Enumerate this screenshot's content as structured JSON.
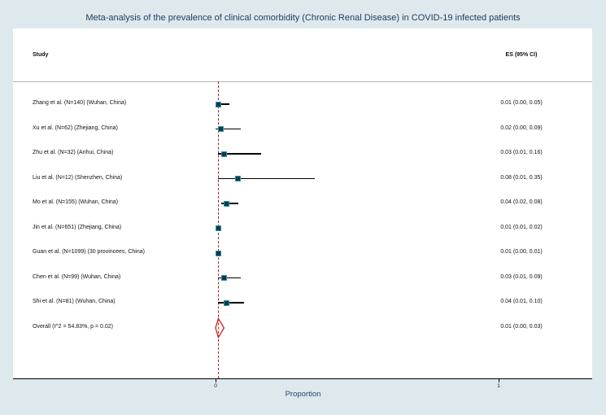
{
  "title": "Meta-analysis of the prevalence of clinical comorbidity (Chronic Renal Disease) in COVID-19 infected patients",
  "columns": {
    "study": "Study",
    "es": "ES (95% CI)"
  },
  "xlabel": "Proportion",
  "x_tick_labels": [
    "0",
    "1"
  ],
  "colors": {
    "background": "#dee9ed",
    "plot_background": "#ffffff",
    "reference_line": "#9b2428",
    "diamond_outline": "#cf1f1f",
    "marker_fill": "#0d3a4d",
    "marker_border": "#2f93a8",
    "title_text": "#1c3a5e"
  },
  "chart_data": {
    "type": "scatter",
    "subtype": "forest-plot",
    "title": "Meta-analysis of the prevalence of clinical comorbidity (Chronic Renal Disease) in COVID-19 infected patients",
    "xlabel": "Proportion",
    "xlim": [
      0,
      1
    ],
    "x_ticks": [
      0,
      1
    ],
    "reference_line_x": 0.01,
    "legend_position": "none",
    "grid": false,
    "studies": [
      {
        "label": "Zhang et al. (N=140) (Wuhan, China)",
        "es": 0.01,
        "ci_low": 0.0,
        "ci_high": 0.05,
        "es_text": "0.01 (0.00, 0.05)"
      },
      {
        "label": "Xu et al. (N=62) (Zhejiang, China)",
        "es": 0.02,
        "ci_low": 0.0,
        "ci_high": 0.09,
        "es_text": "0.02 (0.00, 0.09)"
      },
      {
        "label": "Zhu et al. (N=32) (Anhui, China)",
        "es": 0.03,
        "ci_low": 0.01,
        "ci_high": 0.16,
        "es_text": "0.03 (0.01, 0.16)"
      },
      {
        "label": "Liu et al. (N=12) (Shenzhen, China)",
        "es": 0.08,
        "ci_low": 0.01,
        "ci_high": 0.35,
        "es_text": "0.08 (0.01, 0.35)"
      },
      {
        "label": "Mo et al. (N=155) (Wuhan, China)",
        "es": 0.04,
        "ci_low": 0.02,
        "ci_high": 0.08,
        "es_text": "0.04 (0.02, 0.08)"
      },
      {
        "label": "Jin et al. (N=651) (Zhejiang, China)",
        "es": 0.01,
        "ci_low": 0.01,
        "ci_high": 0.02,
        "es_text": "0.01 (0.01, 0.02)"
      },
      {
        "label": "Guan et al. (N=1099) (30 provincees, China)",
        "es": 0.01,
        "ci_low": 0.0,
        "ci_high": 0.01,
        "es_text": "0.01 (0.00, 0.01)"
      },
      {
        "label": "Chen et al. (N=99) (Wuhan, China)",
        "es": 0.03,
        "ci_low": 0.01,
        "ci_high": 0.09,
        "es_text": "0.03 (0.01, 0.09)"
      },
      {
        "label": "Shi et al. (N=81) (Wuhan, China)",
        "es": 0.04,
        "ci_low": 0.01,
        "ci_high": 0.1,
        "es_text": "0.04 (0.01, 0.10)"
      }
    ],
    "overall": {
      "label": "Overall  (I^2 = 54.83%, p = 0.02)",
      "es": 0.01,
      "ci_low": 0.0,
      "ci_high": 0.03,
      "es_text": "0.01 (0.00, 0.03)",
      "heterogeneity": {
        "i_squared_pct": 54.83,
        "p": 0.02
      }
    }
  }
}
